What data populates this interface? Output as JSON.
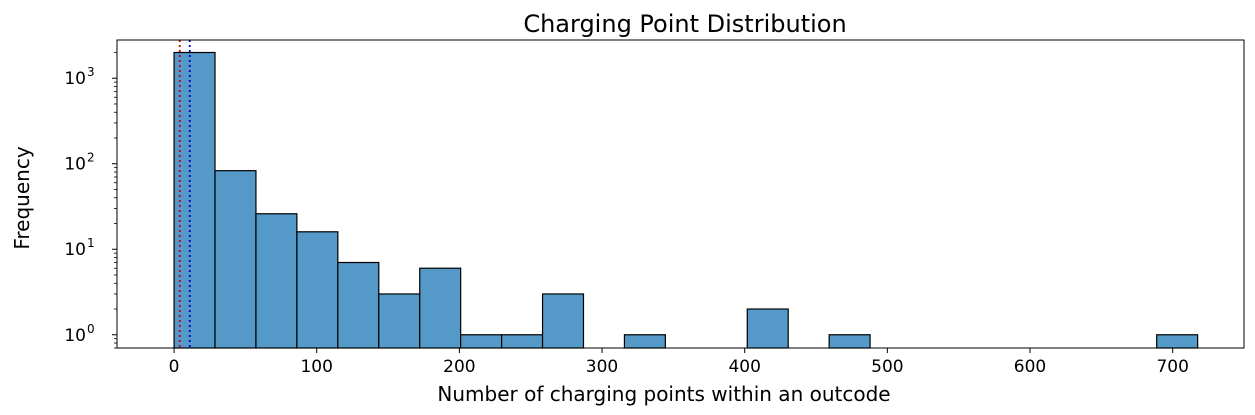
{
  "chart_data": {
    "type": "bar",
    "title": "Charging Point Distribution",
    "xlabel": "Number of charging points within an outcode",
    "ylabel": "Frequency",
    "x_ticks": [
      0,
      100,
      200,
      300,
      400,
      500,
      600,
      700
    ],
    "xlim": [
      -40,
      750
    ],
    "y_scale": "log",
    "ylim": [
      0.7,
      2800
    ],
    "y_ticks": [
      {
        "value": 1,
        "base": "10",
        "exp": "0"
      },
      {
        "value": 10,
        "base": "10",
        "exp": "1"
      },
      {
        "value": 100,
        "base": "10",
        "exp": "2"
      },
      {
        "value": 1000,
        "base": "10",
        "exp": "3"
      }
    ],
    "bin_edges": [
      0,
      28.7,
      57.4,
      86.1,
      114.8,
      143.5,
      172.2,
      200.9,
      229.6,
      258.3,
      287,
      315.7,
      344.4,
      373.1,
      401.8,
      430.5,
      459.2,
      487.9,
      516.6,
      545.3,
      574,
      602.7,
      631.4,
      660.1,
      688.8,
      717.5
    ],
    "values": [
      2000,
      83,
      26,
      16,
      7,
      3,
      6,
      1,
      1,
      3,
      0,
      1,
      0,
      0,
      2,
      0,
      1,
      0,
      0,
      0,
      0,
      0,
      0,
      0,
      1
    ],
    "bar_color": "#5499c7",
    "bar_edge_color": "#000000",
    "reference_lines": [
      {
        "x": 4,
        "color": "#cc0000",
        "style": "dotted"
      },
      {
        "x": 11,
        "color": "#0000cc",
        "style": "dotted"
      }
    ],
    "grid": false,
    "legend": "none"
  }
}
